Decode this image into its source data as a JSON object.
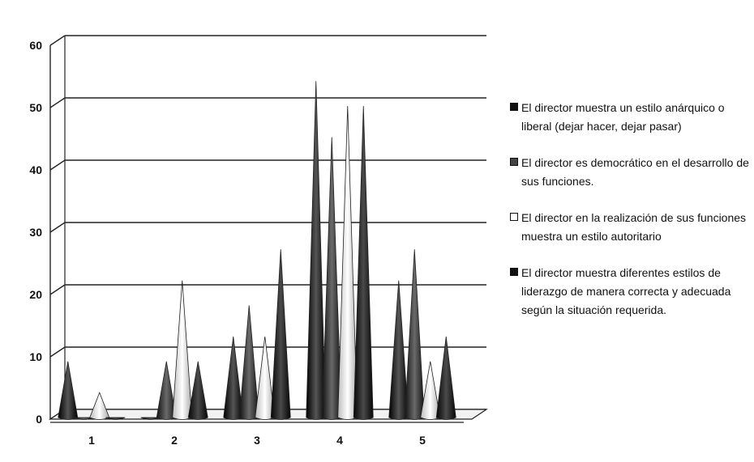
{
  "chart_data": {
    "type": "bar",
    "style": "3d-cone",
    "categories": [
      "1",
      "2",
      "3",
      "4",
      "5"
    ],
    "series": [
      {
        "name": "El director muestra un estilo anárquico o liberal (dejar hacer, dejar pasar)",
        "values": [
          9,
          0,
          13,
          54,
          22
        ],
        "color": "#1a1a1a"
      },
      {
        "name": "El director es democrático en el desarrollo de sus funciones.",
        "values": [
          0,
          9,
          18,
          45,
          27
        ],
        "color": "#3a3a3a"
      },
      {
        "name": "El director en la realización de sus funciones muestra un estilo autoritario",
        "values": [
          4,
          22,
          13,
          50,
          9
        ],
        "color": "#e6e6e6"
      },
      {
        "name": "El director muestra diferentes estilos de liderazgo de manera correcta y adecuada según la situación requerida.",
        "values": [
          0,
          9,
          27,
          50,
          13
        ],
        "color": "#262626"
      }
    ],
    "ylim": [
      0,
      60
    ],
    "yticks": [
      "0",
      "10",
      "20",
      "30",
      "40",
      "50",
      "60"
    ],
    "grid": true,
    "legend_position": "right",
    "title": "",
    "xlabel": "",
    "ylabel": ""
  }
}
